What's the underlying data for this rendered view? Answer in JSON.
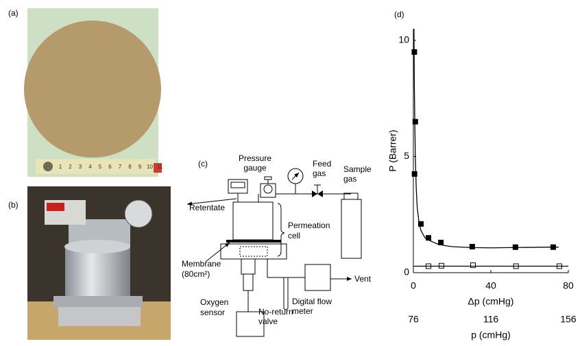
{
  "panel_labels": {
    "a": "(a)",
    "b": "(b)",
    "c": "(c)",
    "d": "(d)"
  },
  "photo_a": {
    "ruler_labels": [
      "1",
      "2",
      "3",
      "4",
      "5",
      "6",
      "7",
      "8",
      "9",
      "10",
      "11"
    ]
  },
  "diagram": {
    "pressure_gauge": [
      "Pressure",
      "gauge"
    ],
    "feed_gas": [
      "Feed",
      "gas"
    ],
    "sample_gas": [
      "Sample",
      "gas"
    ],
    "retentate": "Retentate",
    "permeation_cell": [
      "Permeation",
      "cell"
    ],
    "membrane": [
      "Membrane",
      "(80cm²)"
    ],
    "vent": "Vent",
    "oxygen_sensor": [
      "Oxygen",
      "sensor"
    ],
    "no_return_valve": [
      "No-return",
      "valve"
    ],
    "digital_flow_meter": [
      "Digital flow",
      "meter"
    ]
  },
  "chart_data": {
    "type": "scatter",
    "xlabel": "Δp (cmHg)",
    "ylabel": "P (Barrer)",
    "xlim": [
      0,
      80
    ],
    "xticks": [
      0,
      40,
      80
    ],
    "ylim": [
      0,
      10.5
    ],
    "yticks": [
      0,
      5,
      10
    ],
    "x2label": "p (cmHg)",
    "x2lim": [
      76,
      156
    ],
    "x2ticks": [
      76,
      116,
      156
    ],
    "series": [
      {
        "style": "markers",
        "fill": "#000000",
        "color": "#000000",
        "x": [
          0.5,
          1,
          0.6,
          3.9,
          7.8,
          14.2,
          30.4,
          52.7,
          72.2
        ],
        "values": [
          9.5,
          6.5,
          4.25,
          2.1,
          1.5,
          1.3,
          1.12,
          1.1,
          1.1
        ]
      },
      {
        "style": "markers",
        "fill": "#ffffff",
        "color": "#000000",
        "x": [
          7.8,
          14.5,
          30.8,
          53,
          75.4
        ],
        "values": [
          0.28,
          0.3,
          0.32,
          0.28,
          0.28
        ]
      },
      {
        "style": "line",
        "color": "#000000",
        "x": [
          0.3,
          0.5,
          1,
          1.5,
          2,
          3,
          4,
          6,
          8,
          12,
          16,
          20,
          30,
          40,
          50,
          60,
          70,
          75
        ],
        "values": [
          10.5,
          8,
          5,
          3.6,
          2.8,
          2.1,
          1.8,
          1.5,
          1.4,
          1.25,
          1.17,
          1.12,
          1.08,
          1.07,
          1.08,
          1.09,
          1.1,
          1.1
        ]
      },
      {
        "style": "line",
        "color": "#000000",
        "x": [
          0,
          80
        ],
        "values": [
          0.28,
          0.28
        ]
      }
    ]
  }
}
